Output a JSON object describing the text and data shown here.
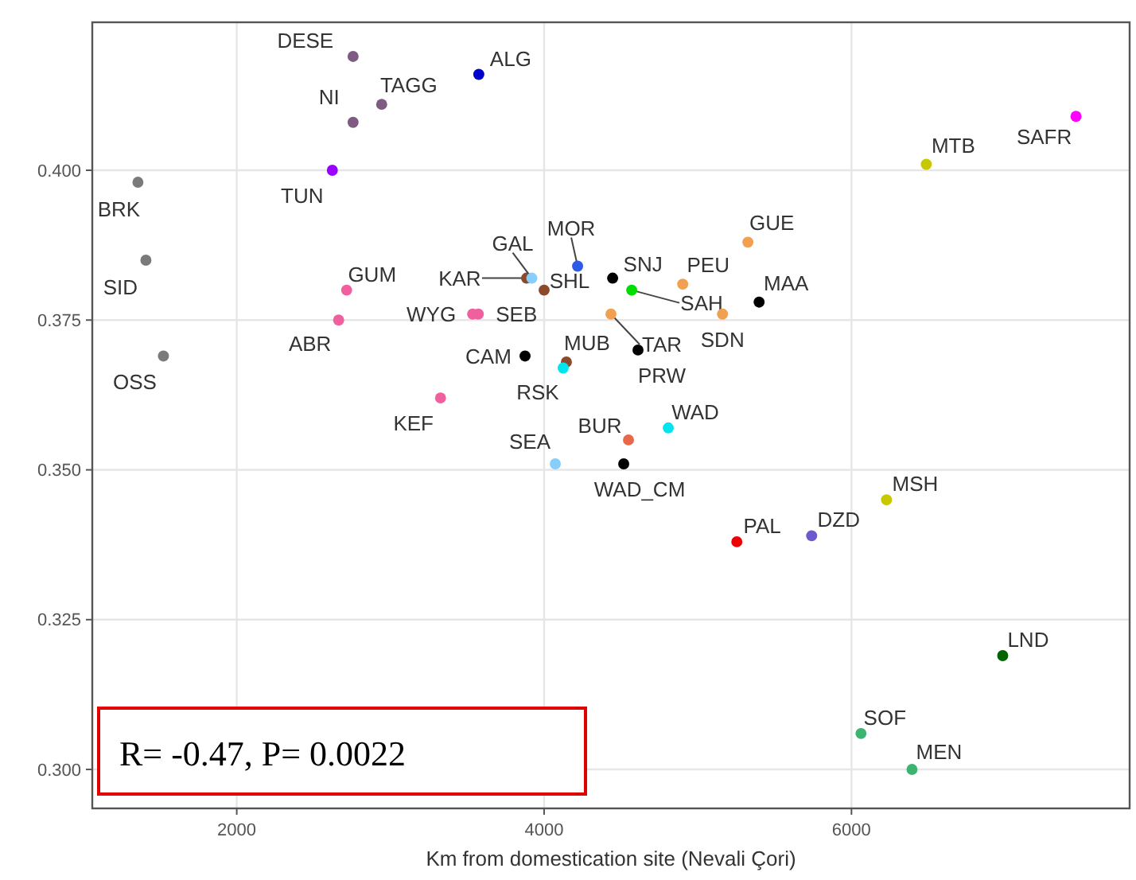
{
  "chart_data": {
    "type": "scatter",
    "xlabel": "Km from domestication site (Nevali Çori)",
    "xlim": [
      1060,
      7810
    ],
    "ylim": [
      0.2935,
      0.4247
    ],
    "xticks": [
      2000,
      4000,
      6000
    ],
    "yticks": [
      {
        "value": 0.3,
        "label": "0.300"
      },
      {
        "value": 0.325,
        "label": "0.325"
      },
      {
        "value": 0.35,
        "label": "0.350"
      },
      {
        "value": 0.375,
        "label": "0.375"
      },
      {
        "value": 0.4,
        "label": "0.400"
      }
    ],
    "grid": true,
    "marker": "circle",
    "annotations": [
      "R= -0.47, P= 0.0022"
    ],
    "series": [
      {
        "name": "DESE",
        "color": "#7f5a83",
        "x": [
          2757
        ],
        "values": [
          0.419
        ]
      },
      {
        "name": "ALG",
        "color": "#0000cc",
        "x": [
          3575
        ],
        "values": [
          0.416
        ]
      },
      {
        "name": "TAGG",
        "color": "#7f5a83",
        "x": [
          2943
        ],
        "values": [
          0.411
        ]
      },
      {
        "name": "NI",
        "color": "#7f5a83",
        "x": [
          2757
        ],
        "values": [
          0.408
        ]
      },
      {
        "name": "TUN",
        "color": "#9b00ff",
        "x": [
          2622
        ],
        "values": [
          0.4
        ]
      },
      {
        "name": "BRK",
        "color": "#7a7a7a",
        "x": [
          1357
        ],
        "values": [
          0.398
        ]
      },
      {
        "name": "SID",
        "color": "#7a7a7a",
        "x": [
          1409
        ],
        "values": [
          0.385
        ]
      },
      {
        "name": "OSS",
        "color": "#7a7a7a",
        "x": [
          1523
        ],
        "values": [
          0.369
        ]
      },
      {
        "name": "GUM",
        "color": "#f0609e",
        "x": [
          2715
        ],
        "values": [
          0.38
        ]
      },
      {
        "name": "ABR",
        "color": "#f0609e",
        "x": [
          2663
        ],
        "values": [
          0.375
        ]
      },
      {
        "name": "KEF",
        "color": "#f0609e",
        "x": [
          3326
        ],
        "values": [
          0.362
        ]
      },
      {
        "name": "WYG",
        "color": "#f0609e",
        "x": [
          3535
        ],
        "values": [
          0.376
        ]
      },
      {
        "name": "SEB",
        "color": "#f0609e",
        "x": [
          3572
        ],
        "values": [
          0.376
        ]
      },
      {
        "name": "KAR",
        "color": "#8b4a2b",
        "x": [
          3886
        ],
        "values": [
          0.382
        ]
      },
      {
        "name": "GAL",
        "color": "#87cefa",
        "x": [
          3920
        ],
        "values": [
          0.382
        ]
      },
      {
        "name": "SHL",
        "color": "#8b4a2b",
        "x": [
          4000
        ],
        "values": [
          0.38
        ]
      },
      {
        "name": "MOR",
        "color": "#2e5be5",
        "x": [
          4218
        ],
        "values": [
          0.384
        ]
      },
      {
        "name": "CAM",
        "color": "#000000",
        "x": [
          3876
        ],
        "values": [
          0.369
        ]
      },
      {
        "name": "MUB",
        "color": "#8b4a2b",
        "x": [
          4145
        ],
        "values": [
          0.368
        ]
      },
      {
        "name": "RSK",
        "color": "#00e5ee",
        "x": [
          4124
        ],
        "values": [
          0.367
        ]
      },
      {
        "name": "SNJ",
        "color": "#000000",
        "x": [
          4446
        ],
        "values": [
          0.382
        ]
      },
      {
        "name": "SAH",
        "color": "#00dd00",
        "x": [
          4570
        ],
        "values": [
          0.38
        ]
      },
      {
        "name": "TAR",
        "color": "#f0a050",
        "x": [
          4435
        ],
        "values": [
          0.376
        ]
      },
      {
        "name": "PEU",
        "color": "#f0a050",
        "x": [
          4902
        ],
        "values": [
          0.381
        ]
      },
      {
        "name": "GUE",
        "color": "#f0a050",
        "x": [
          5326
        ],
        "values": [
          0.388
        ]
      },
      {
        "name": "SDN",
        "color": "#f0a050",
        "x": [
          5161
        ],
        "values": [
          0.376
        ]
      },
      {
        "name": "MAA",
        "color": "#000000",
        "x": [
          5399
        ],
        "values": [
          0.378
        ]
      },
      {
        "name": "PRW",
        "color": "#000000",
        "x": [
          4611
        ],
        "values": [
          0.37
        ]
      },
      {
        "name": "WAD",
        "color": "#00e5ee",
        "x": [
          4808
        ],
        "values": [
          0.357
        ]
      },
      {
        "name": "BUR",
        "color": "#e8684a",
        "x": [
          4549
        ],
        "values": [
          0.355
        ]
      },
      {
        "name": "SEA",
        "color": "#87cefa",
        "x": [
          4073
        ],
        "values": [
          0.351
        ]
      },
      {
        "name": "WAD_CM",
        "color": "#000000",
        "x": [
          4518
        ],
        "values": [
          0.351
        ]
      },
      {
        "name": "PAL",
        "color": "#ee0000",
        "x": [
          5254
        ],
        "values": [
          0.338
        ]
      },
      {
        "name": "DZD",
        "color": "#6a5acd",
        "x": [
          5741
        ],
        "values": [
          0.339
        ]
      },
      {
        "name": "MSH",
        "color": "#c8c800",
        "x": [
          6228
        ],
        "values": [
          0.345
        ]
      },
      {
        "name": "MTB",
        "color": "#c8c800",
        "x": [
          6487
        ],
        "values": [
          0.401
        ]
      },
      {
        "name": "SAFR",
        "color": "#ff00ff",
        "x": [
          7461
        ],
        "values": [
          0.409
        ]
      },
      {
        "name": "LND",
        "color": "#006400",
        "x": [
          6984
        ],
        "values": [
          0.319
        ]
      },
      {
        "name": "SOF",
        "color": "#3cb371",
        "x": [
          6062
        ],
        "values": [
          0.306
        ]
      },
      {
        "name": "MEN",
        "color": "#3cb371",
        "x": [
          6394
        ],
        "values": [
          0.3
        ]
      }
    ]
  }
}
